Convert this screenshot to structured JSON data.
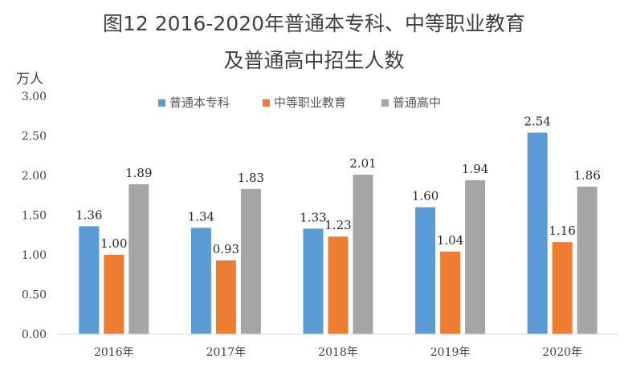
{
  "chart_data": {
    "type": "bar",
    "title_line1": "图12    2016-2020年普通本专科、中等职业教育",
    "title_line2": "及普通高中招生人数",
    "unit_label": "万人",
    "categories": [
      "2016年",
      "2017年",
      "2018年",
      "2019年",
      "2020年"
    ],
    "series": [
      {
        "name": "普通本专科",
        "color": "#5B9BD5",
        "values": [
          1.36,
          1.34,
          1.33,
          1.6,
          2.54
        ],
        "labels": [
          "1.36",
          "1.34",
          "1.33",
          "1.60",
          "2.54"
        ]
      },
      {
        "name": "中等职业教育",
        "color": "#ED7D31",
        "values": [
          1.0,
          0.93,
          1.23,
          1.04,
          1.16
        ],
        "labels": [
          "1.00",
          "0.93",
          "1.23",
          "1.04",
          "1.16"
        ]
      },
      {
        "name": "普通高中",
        "color": "#A5A5A5",
        "values": [
          1.89,
          1.83,
          2.01,
          1.94,
          1.86
        ],
        "labels": [
          "1.89",
          "1.83",
          "2.01",
          "1.94",
          "1.86"
        ]
      }
    ],
    "y_ticks": [
      "0.00",
      "0.50",
      "1.00",
      "1.50",
      "2.00",
      "2.50",
      "3.00"
    ],
    "ylim": [
      0,
      3.0
    ],
    "grid": false,
    "legend_position": "top"
  }
}
